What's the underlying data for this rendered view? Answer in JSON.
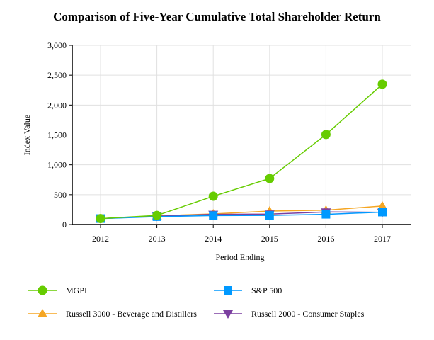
{
  "chart_data": {
    "type": "line",
    "title": "Comparison of Five-Year Cumulative Total Shareholder Return",
    "xlabel": "Period Ending",
    "ylabel": "Index Value",
    "categories": [
      "2012",
      "2013",
      "2014",
      "2015",
      "2016",
      "2017"
    ],
    "ylim": [
      0,
      3000
    ],
    "yticks": [
      "0",
      "500",
      "1,000",
      "1,500",
      "2,000",
      "2,500",
      "3,000"
    ],
    "ytick_values": [
      0,
      500,
      1000,
      1500,
      2000,
      2500,
      3000
    ],
    "grid": true,
    "legend_position": "bottom",
    "series": [
      {
        "name": "MGPI",
        "color": "#66cc00",
        "marker": "circle",
        "values": [
          100,
          152,
          474,
          771,
          1507,
          2349
        ]
      },
      {
        "name": "S&P 500",
        "color": "#0099ff",
        "marker": "square",
        "values": [
          100,
          132,
          150,
          153,
          171,
          208
        ]
      },
      {
        "name": "Russell 3000 - Beverage and Distillers",
        "color": "#f5a623",
        "marker": "triangle-up",
        "values": [
          100,
          145,
          178,
          225,
          240,
          310
        ]
      },
      {
        "name": "Russell 2000 - Consumer Staples",
        "color": "#7b3fa0",
        "marker": "triangle-down",
        "values": [
          100,
          140,
          170,
          175,
          210,
          205
        ]
      }
    ]
  }
}
